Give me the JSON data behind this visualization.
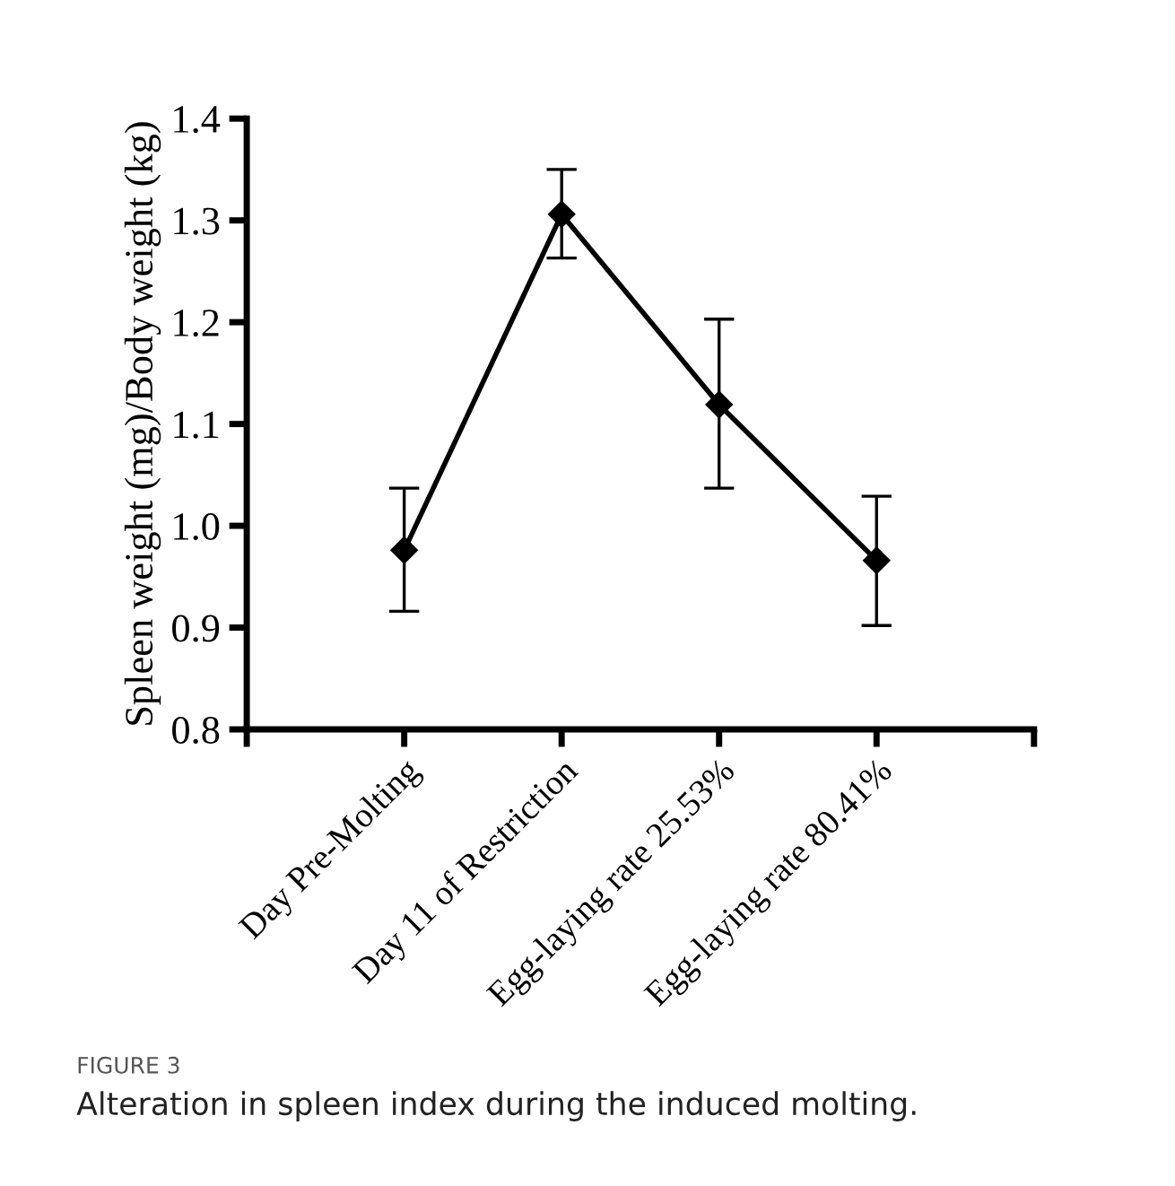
{
  "chart_data": {
    "type": "line",
    "ylabel": "Spleen weight (mg)/Body weight (kg)",
    "categories": [
      "Day Pre-Molting",
      "Day 11 of Restriction",
      "Egg-laying rate 25.53%",
      "Egg-laying rate 80.41%"
    ],
    "series": [
      {
        "color": "#000000",
        "values": [
          0.976,
          1.306,
          1.119,
          0.966
        ],
        "errors": [
          [
            0.916,
            1.037
          ],
          [
            1.263,
            1.35
          ],
          [
            1.037,
            1.203
          ],
          [
            0.902,
            1.029
          ]
        ]
      }
    ],
    "ylim": [
      0.8,
      1.4
    ],
    "yticks": [
      0.8,
      0.9,
      {
        "value": 1,
        "label": "1.0"
      },
      1.1,
      1.2,
      1.3,
      1.4
    ],
    "marker": "diamond",
    "line_style": "solid",
    "grid": false,
    "legend": false,
    "annotations": [
      "FIGURE 3",
      "Alteration in spleen index during the induced molting."
    ]
  }
}
